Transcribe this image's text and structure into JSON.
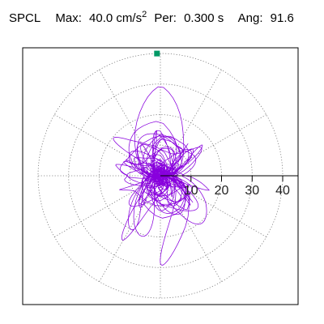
{
  "header": {
    "station": "SPCL",
    "max_label": "Max:",
    "max_value": "40.0",
    "max_unit": "cm/s",
    "max_unit_sup": "2",
    "period_label": "Per:",
    "period_value": "0.300 s",
    "angle_label": "Ang:",
    "angle_value": "91.6"
  },
  "chart_data": {
    "type": "polar-trajectory",
    "title": "",
    "radial_ticks": [
      "10",
      "20",
      "30",
      "40"
    ],
    "radial_max": 40,
    "angular_grid_step_deg": 30,
    "grid": true,
    "max_marker": {
      "angle_deg": 91.6,
      "radius": 40.0,
      "color": "#009966"
    },
    "trace_color": "#8800dd",
    "trace_envelope": [
      {
        "angle_deg": 0,
        "radius": 9
      },
      {
        "angle_deg": 30,
        "radius": 20
      },
      {
        "angle_deg": 60,
        "radius": 27
      },
      {
        "angle_deg": 90,
        "radius": 40
      },
      {
        "angle_deg": 120,
        "radius": 32
      },
      {
        "angle_deg": 150,
        "radius": 21
      },
      {
        "angle_deg": 180,
        "radius": 11
      },
      {
        "angle_deg": 210,
        "radius": 17
      },
      {
        "angle_deg": 240,
        "radius": 30
      },
      {
        "angle_deg": 270,
        "radius": 38
      },
      {
        "angle_deg": 300,
        "radius": 33
      },
      {
        "angle_deg": 330,
        "radius": 23
      }
    ]
  }
}
